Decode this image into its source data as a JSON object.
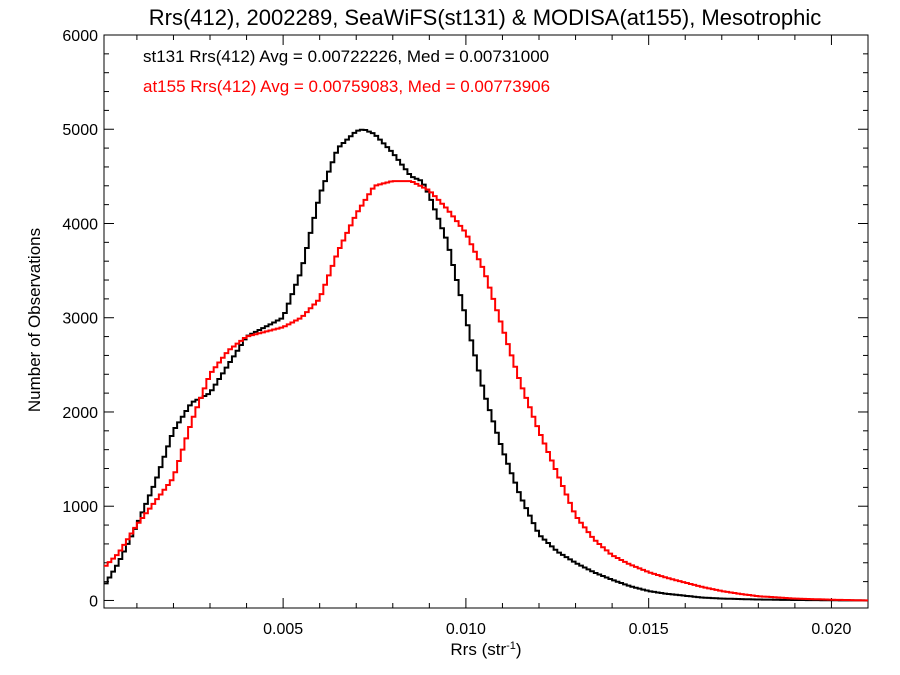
{
  "chart_data": {
    "type": "line",
    "title": "Rrs(412), 2002289, SeaWiFS(st131) & MODISA(at155), Mesotrophic",
    "xlabel_main": "Rrs (str",
    "xlabel_sup": "-1",
    "xlabel_end": ")",
    "ylabel": "Number of Observations",
    "xlim": [
      0.0001,
      0.021
    ],
    "ylim": [
      -80,
      6000
    ],
    "xticks": [
      0.005,
      0.01,
      0.015,
      0.02
    ],
    "xtick_labels": [
      "0.005",
      "0.010",
      "0.015",
      "0.020"
    ],
    "yticks": [
      0,
      1000,
      2000,
      3000,
      4000,
      5000,
      6000
    ],
    "ytick_labels": [
      "0",
      "1000",
      "2000",
      "3000",
      "4000",
      "5000",
      "6000"
    ],
    "legend_placement": "top-left",
    "series": [
      {
        "name": "st131",
        "color": "#000000",
        "annotation": "st131 Rrs(412) Avg = 0.00722226, Med = 0.00731000",
        "x": [
          0.0001,
          0.0005,
          0.001,
          0.0015,
          0.002,
          0.0025,
          0.003,
          0.0035,
          0.004,
          0.0045,
          0.005,
          0.0055,
          0.006,
          0.0065,
          0.007,
          0.0072,
          0.0075,
          0.008,
          0.0085,
          0.0088,
          0.009,
          0.0095,
          0.01,
          0.0105,
          0.011,
          0.0115,
          0.012,
          0.0125,
          0.013,
          0.0135,
          0.014,
          0.0145,
          0.015,
          0.0155,
          0.016,
          0.0165,
          0.017,
          0.0175,
          0.018,
          0.019,
          0.02,
          0.021
        ],
        "y": [
          150,
          400,
          800,
          1250,
          1800,
          2100,
          2200,
          2500,
          2800,
          2900,
          3000,
          3500,
          4300,
          4800,
          4980,
          5000,
          4950,
          4750,
          4500,
          4450,
          4300,
          3800,
          3000,
          2200,
          1600,
          1100,
          700,
          520,
          400,
          300,
          220,
          150,
          100,
          70,
          50,
          30,
          20,
          15,
          10,
          5,
          2,
          0
        ]
      },
      {
        "name": "at155",
        "color": "#ff0000",
        "annotation": "at155 Rrs(412) Avg = 0.00759083, Med = 0.00773906",
        "x": [
          0.0001,
          0.0005,
          0.001,
          0.0015,
          0.002,
          0.0025,
          0.003,
          0.0035,
          0.004,
          0.0045,
          0.005,
          0.0055,
          0.006,
          0.0065,
          0.007,
          0.0075,
          0.008,
          0.0085,
          0.009,
          0.0095,
          0.01,
          0.0105,
          0.011,
          0.0115,
          0.012,
          0.0125,
          0.013,
          0.0135,
          0.014,
          0.0145,
          0.015,
          0.0155,
          0.016,
          0.0165,
          0.017,
          0.0175,
          0.018,
          0.019,
          0.02,
          0.021
        ],
        "y": [
          350,
          500,
          800,
          1050,
          1300,
          1900,
          2400,
          2650,
          2800,
          2850,
          2900,
          3000,
          3200,
          3700,
          4100,
          4400,
          4450,
          4450,
          4350,
          4150,
          3900,
          3500,
          2900,
          2300,
          1800,
          1350,
          900,
          650,
          480,
          380,
          300,
          240,
          190,
          140,
          100,
          70,
          45,
          20,
          8,
          0
        ]
      }
    ]
  }
}
